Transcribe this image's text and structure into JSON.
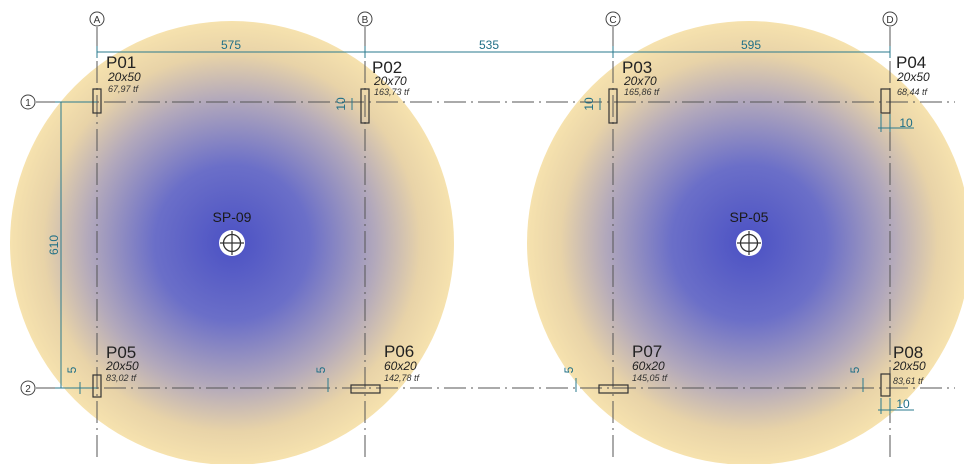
{
  "axes_x": [
    "A",
    "B",
    "C",
    "D"
  ],
  "axes_y": [
    "1",
    "2"
  ],
  "spans": [
    "575",
    "535",
    "595"
  ],
  "vertical_dimension": "610",
  "columns": [
    {
      "name": "P01",
      "size": "20x50",
      "load": "67,97  tf"
    },
    {
      "name": "P02",
      "size": "20x70",
      "load": "163,73 tf"
    },
    {
      "name": "P03",
      "size": "20x70",
      "load": "165,86 tf"
    },
    {
      "name": "P04",
      "size": "20x50",
      "load": "68,44 tf"
    },
    {
      "name": "P05",
      "size": "20x50",
      "load": "83,02 tf"
    },
    {
      "name": "P06",
      "size": "60x20",
      "load": "142,78 tf"
    },
    {
      "name": "P07",
      "size": "60x20",
      "load": "145,05  tf"
    },
    {
      "name": "P08",
      "size": "20x50",
      "load": "83,61 tf"
    }
  ],
  "offsets": {
    "p02": "10",
    "p03": "10",
    "p04": "10",
    "p05": "5",
    "p06": "5",
    "p07": "5",
    "p08_v": "5",
    "p08_h": "10"
  },
  "soundings": [
    {
      "name": "SP-09"
    },
    {
      "name": "SP-05"
    }
  ],
  "colors": {
    "bulb_center": "#5158c0",
    "bulb_edge": "#f2dca6",
    "dimension": "#1f6f86"
  }
}
